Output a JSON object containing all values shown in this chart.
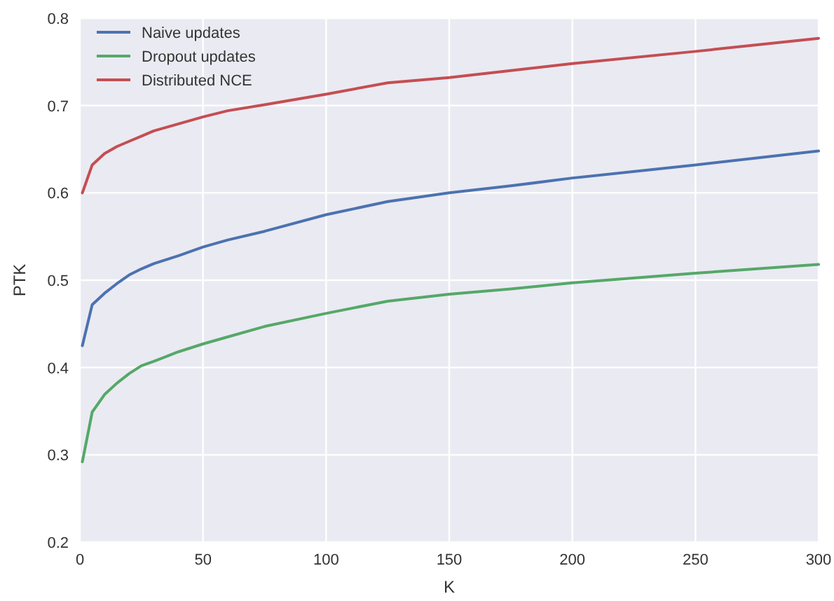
{
  "chart_data": {
    "type": "line",
    "xlabel": "K",
    "ylabel": "PTK",
    "x": [
      1,
      5,
      10,
      15,
      20,
      25,
      30,
      40,
      50,
      60,
      75,
      100,
      125,
      150,
      175,
      200,
      250,
      300
    ],
    "series": [
      {
        "name": "Naive updates",
        "color": "#4c72b0",
        "values": [
          0.425,
          0.472,
          0.485,
          0.496,
          0.506,
          0.513,
          0.519,
          0.528,
          0.538,
          0.546,
          0.556,
          0.575,
          0.59,
          0.6,
          0.608,
          0.617,
          0.632,
          0.648
        ]
      },
      {
        "name": "Dropout updates",
        "color": "#55a868",
        "values": [
          0.292,
          0.349,
          0.369,
          0.382,
          0.393,
          0.402,
          0.407,
          0.418,
          0.427,
          0.435,
          0.447,
          0.462,
          0.476,
          0.484,
          0.49,
          0.497,
          0.508,
          0.518
        ]
      },
      {
        "name": "Distributed NCE",
        "color": "#c44e52",
        "values": [
          0.6,
          0.632,
          0.645,
          0.653,
          0.659,
          0.665,
          0.671,
          0.679,
          0.687,
          0.694,
          0.701,
          0.713,
          0.726,
          0.732,
          0.74,
          0.748,
          0.762,
          0.777
        ]
      }
    ],
    "xlim": [
      0,
      300
    ],
    "xticks": [
      0,
      50,
      100,
      150,
      200,
      250,
      300
    ],
    "ylim": [
      0.2,
      0.8
    ],
    "yticks": [
      0.2,
      0.3,
      0.4,
      0.5,
      0.6,
      0.7,
      0.8
    ],
    "grid": true,
    "legend": "top left"
  }
}
